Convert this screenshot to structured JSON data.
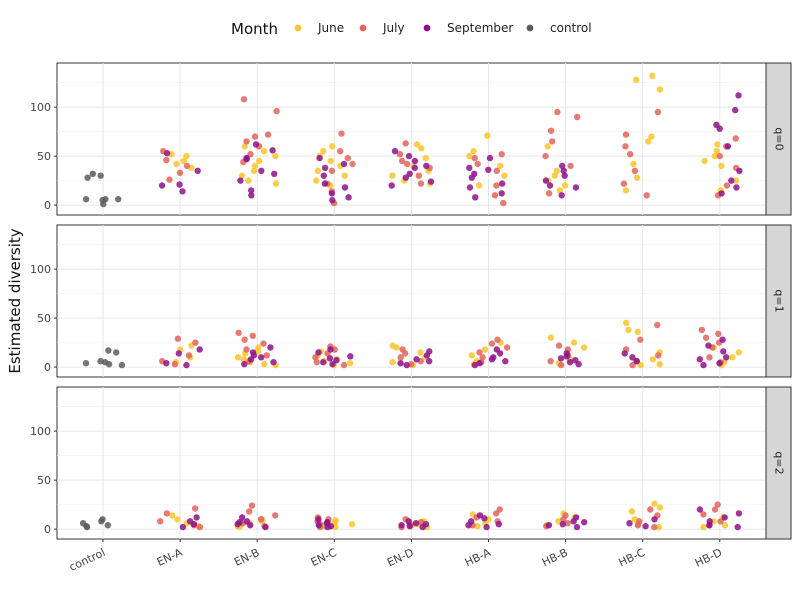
{
  "chart_data": {
    "type": "scatter",
    "legend_title": "Month",
    "legend_position": "top",
    "ylabel": "Estimated diversity",
    "xlabel": "",
    "categories": [
      "control",
      "EN-A",
      "EN-B",
      "EN-C",
      "EN-D",
      "HB-A",
      "HB-B",
      "HB-C",
      "HB-D"
    ],
    "ylim": [
      -5,
      140
    ],
    "yticks": [
      0,
      50,
      100
    ],
    "grid": true,
    "series": [
      {
        "name": "June",
        "color": "#F9C62B"
      },
      {
        "name": "July",
        "color": "#E0645A"
      },
      {
        "name": "September",
        "color": "#8E1289"
      },
      {
        "name": "control",
        "color": "#5C5C5C"
      }
    ],
    "facets": [
      {
        "label": "q=0",
        "points": {
          "control": {
            "control": [
              5,
              6,
              28,
              32,
              30,
              1,
              6,
              6
            ]
          },
          "EN-A": {
            "June": [
              45,
              42,
              52,
              38,
              50
            ],
            "July": [
              55,
              33,
              26,
              40,
              46
            ],
            "September": [
              14,
              21,
              53,
              20,
              35
            ]
          },
          "EN-B": {
            "June": [
              22,
              30,
              40,
              50,
              60,
              35,
              45,
              55,
              25
            ],
            "July": [
              108,
              96,
              70,
              65,
              60,
              52,
              44,
              72
            ],
            "September": [
              10,
              15,
              25,
              32,
              47,
              56,
              62,
              48,
              35
            ]
          },
          "EN-C": {
            "June": [
              20,
              30,
              40,
              50,
              55,
              60,
              35,
              25,
              45
            ],
            "July": [
              73,
              55,
              42,
              22,
              14,
              2,
              35,
              48
            ],
            "September": [
              5,
              12,
              22,
              30,
              42,
              48,
              38,
              18,
              8
            ]
          },
          "EN-D": {
            "June": [
              22,
              35,
              48,
              58,
              62,
              40,
              30,
              25
            ],
            "July": [
              63,
              52,
              42,
              30,
              22,
              45,
              38
            ],
            "September": [
              20,
              28,
              38,
              50,
              55,
              24,
              32,
              40,
              45
            ]
          },
          "HB-A": {
            "June": [
              71,
              55,
              40,
              30,
              20,
              50
            ],
            "July": [
              48,
              35,
              20,
              10,
              2,
              42,
              52
            ],
            "September": [
              8,
              18,
              28,
              38,
              48,
              12,
              22,
              32,
              36
            ]
          },
          "HB-B": {
            "June": [
              60,
              35,
              20,
              25,
              15,
              30
            ],
            "July": [
              95,
              90,
              76,
              65,
              50,
              40,
              12
            ],
            "September": [
              10,
              20,
              30,
              40,
              25,
              18,
              35
            ]
          },
          "HB-C": {
            "June": [
              132,
              128,
              118,
              70,
              65,
              42,
              28,
              15
            ],
            "July": [
              95,
              72,
              60,
              52,
              35,
              22,
              10
            ],
            "September": []
          },
          "HB-D": {
            "June": [
              62,
              50,
              40,
              25,
              15,
              55,
              45
            ],
            "July": [
              68,
              60,
              50,
              38,
              20,
              10
            ],
            "September": [
              112,
              97,
              82,
              78,
              60,
              25,
              18,
              12,
              35
            ]
          }
        }
      },
      {
        "label": "q=1",
        "points": {
          "control": {
            "control": [
              17,
              15,
              6,
              4,
              2,
              5,
              3
            ]
          },
          "EN-A": {
            "June": [
              5,
              10,
              22,
              18
            ],
            "July": [
              29,
              25,
              12,
              6,
              3
            ],
            "September": [
              14,
              18,
              2,
              4
            ]
          },
          "EN-B": {
            "June": [
              3,
              8,
              14,
              20,
              5,
              10,
              2,
              16
            ],
            "July": [
              35,
              32,
              28,
              24,
              18,
              12,
              6
            ],
            "September": [
              5,
              10,
              15,
              20,
              3,
              8,
              12
            ]
          },
          "EN-C": {
            "June": [
              4,
              8,
              12,
              16,
              2,
              6
            ],
            "July": [
              21,
              18,
              14,
              10,
              5,
              2
            ],
            "September": [
              3,
              7,
              11,
              15,
              18,
              5,
              9
            ]
          },
          "EN-D": {
            "June": [
              22,
              20,
              15,
              10,
              5,
              2
            ],
            "July": [
              18,
              14,
              10,
              6,
              3
            ],
            "September": [
              4,
              8,
              12,
              16,
              2,
              6
            ]
          },
          "HB-A": {
            "June": [
              25,
              18,
              12,
              6,
              3
            ],
            "July": [
              28,
              24,
              20,
              15,
              10,
              5
            ],
            "September": [
              2,
              6,
              10,
              14,
              18,
              4,
              8
            ]
          },
          "HB-B": {
            "June": [
              30,
              25,
              20,
              8,
              4
            ],
            "July": [
              22,
              18,
              12,
              6,
              2
            ],
            "September": [
              3,
              7,
              11,
              14,
              5,
              9
            ]
          },
          "HB-C": {
            "June": [
              45,
              38,
              36,
              15,
              8,
              3,
              2
            ],
            "July": [
              43,
              28,
              18,
              12,
              6,
              2
            ],
            "September": [
              10,
              14,
              6
            ]
          },
          "HB-D": {
            "June": [
              20,
              15,
              10,
              5,
              2
            ],
            "July": [
              38,
              34,
              30,
              25,
              20,
              10,
              5
            ],
            "September": [
              28,
              22,
              16,
              10,
              4,
              2,
              8
            ]
          }
        }
      },
      {
        "label": "q=2",
        "points": {
          "control": {
            "control": [
              10,
              8,
              6,
              4,
              2,
              3
            ]
          },
          "EN-A": {
            "June": [
              14,
              10,
              6,
              3
            ],
            "July": [
              21,
              16,
              8,
              4,
              2
            ],
            "September": [
              5,
              8,
              2,
              12
            ]
          },
          "EN-B": {
            "June": [
              3,
              6,
              10,
              2,
              8
            ],
            "July": [
              24,
              18,
              14,
              10,
              6,
              3
            ],
            "September": [
              2,
              5,
              8,
              12,
              4,
              7
            ]
          },
          "EN-C": {
            "June": [
              3,
              6,
              9,
              2,
              5
            ],
            "July": [
              12,
              10,
              8,
              5,
              2
            ],
            "September": [
              2,
              4,
              7,
              10,
              3,
              6
            ]
          },
          "EN-D": {
            "June": [
              8,
              6,
              4,
              2,
              5
            ],
            "July": [
              10,
              7,
              4,
              2
            ],
            "September": [
              2,
              4,
              6,
              8,
              3,
              5
            ]
          },
          "HB-A": {
            "June": [
              15,
              10,
              6,
              3
            ],
            "July": [
              20,
              16,
              12,
              8,
              4
            ],
            "September": [
              2,
              5,
              8,
              11,
              14,
              4
            ]
          },
          "HB-B": {
            "June": [
              16,
              12,
              8,
              4
            ],
            "July": [
              14,
              10,
              6,
              3
            ],
            "September": [
              2,
              5,
              8,
              12,
              4,
              7
            ]
          },
          "HB-C": {
            "June": [
              26,
              22,
              18,
              10,
              5,
              2
            ],
            "July": [
              20,
              14,
              8,
              4,
              2
            ],
            "September": [
              6,
              10,
              3
            ]
          },
          "HB-D": {
            "June": [
              12,
              8,
              4,
              2
            ],
            "July": [
              25,
              20,
              15,
              8,
              4
            ],
            "September": [
              20,
              16,
              12,
              8,
              4,
              2
            ]
          }
        }
      }
    ]
  }
}
